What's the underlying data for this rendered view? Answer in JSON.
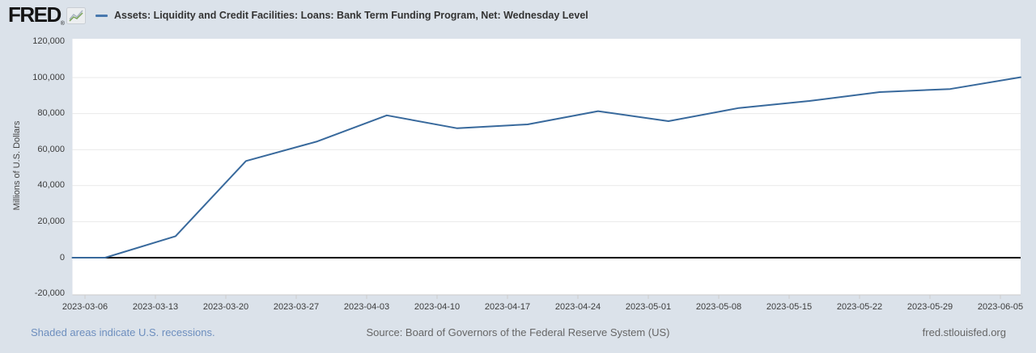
{
  "header": {
    "logo_text": "FRED",
    "logo_registered": "®"
  },
  "footer": {
    "recessions_note": "Shaded areas indicate U.S. recessions.",
    "source": "Source: Board of Governors of the Federal Reserve System (US)",
    "site": "fred.stlouisfed.org"
  },
  "icons": {
    "logo_chart_icon": "mini-line-chart-icon",
    "legend_dash_icon": "series-color-dash-icon"
  },
  "colors": {
    "page_bg": "#dbe2ea",
    "plot_bg": "#ffffff",
    "series_line": "#38699c",
    "legend_dash": "#4878ae",
    "grid_line": "#e9e9e9",
    "zero_line": "#000000",
    "axis_border": "#cccccc",
    "tick_text": "#3c3c3c",
    "link_blue": "#6d8ebe",
    "muted_text": "#666666",
    "logo_icon_green": "#79a357",
    "logo_icon_gray": "#a9b4c0"
  },
  "chart_data": {
    "type": "line",
    "title": "Assets: Liquidity and Credit Facilities: Loans: Bank Term Funding Program, Net: Wednesday Level",
    "xlabel": "",
    "ylabel": "Millions of U.S. Dollars",
    "ylim": [
      -20000,
      120000
    ],
    "y_ticks": [
      120000,
      100000,
      80000,
      60000,
      40000,
      20000,
      0,
      -20000
    ],
    "x_tick_labels": [
      "2023-03-06",
      "2023-03-13",
      "2023-03-20",
      "2023-03-27",
      "2023-04-03",
      "2023-04-10",
      "2023-04-17",
      "2023-04-24",
      "2023-05-01",
      "2023-05-08",
      "2023-05-15",
      "2023-05-22",
      "2023-05-29",
      "2023-06-05"
    ],
    "grid": "horizontal-only",
    "legend_position": "top",
    "series": [
      {
        "name": "Assets: Liquidity and Credit Facilities: Loans: Bank Term Funding Program, Net: Wednesday Level",
        "dates": [
          "2023-03-01",
          "2023-03-08",
          "2023-03-15",
          "2023-03-22",
          "2023-03-29",
          "2023-04-05",
          "2023-04-12",
          "2023-04-19",
          "2023-04-26",
          "2023-05-03",
          "2023-05-10",
          "2023-05-17",
          "2023-05-24",
          "2023-05-31",
          "2023-06-07"
        ],
        "values": [
          0,
          0,
          11943,
          53669,
          64403,
          79021,
          71837,
          73982,
          81327,
          75778,
          83101,
          87006,
          91907,
          93615,
          100161
        ]
      }
    ]
  }
}
